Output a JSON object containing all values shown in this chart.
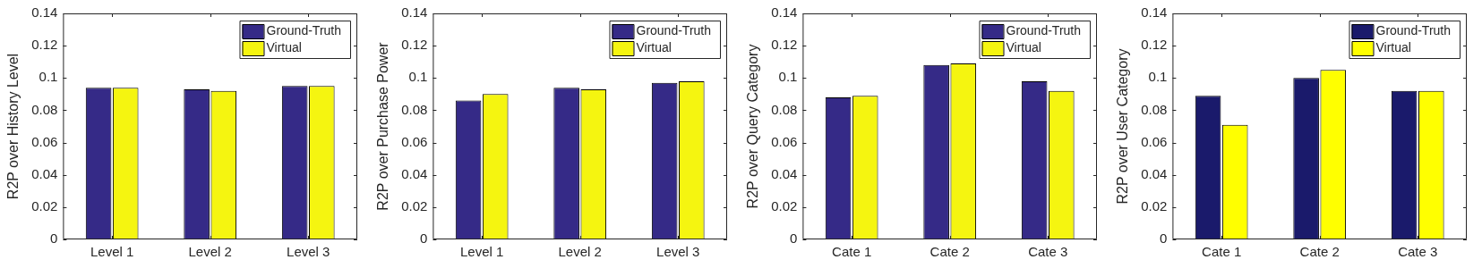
{
  "chart_data": [
    {
      "type": "bar",
      "ylabel": "R2P over History Level",
      "categories": [
        "Level 1",
        "Level 2",
        "Level 3"
      ],
      "ylim": [
        0,
        0.14
      ],
      "yticks": [
        0,
        0.02,
        0.04,
        0.06,
        0.08,
        0.1,
        0.12,
        0.14
      ],
      "legend": "top right",
      "series": [
        {
          "name": "Ground-Truth",
          "color": "#352a87",
          "values": [
            0.094,
            0.093,
            0.095
          ]
        },
        {
          "name": "Virtual",
          "color": "#f5f510",
          "values": [
            0.094,
            0.092,
            0.095
          ]
        }
      ]
    },
    {
      "type": "bar",
      "ylabel": "R2P over Purchase Power",
      "categories": [
        "Level 1",
        "Level 2",
        "Level 3"
      ],
      "ylim": [
        0,
        0.14
      ],
      "yticks": [
        0,
        0.02,
        0.04,
        0.06,
        0.08,
        0.1,
        0.12,
        0.14
      ],
      "legend": "top right",
      "series": [
        {
          "name": "Ground-Truth",
          "color": "#352a87",
          "values": [
            0.086,
            0.094,
            0.097
          ]
        },
        {
          "name": "Virtual",
          "color": "#f5f510",
          "values": [
            0.09,
            0.093,
            0.098
          ]
        }
      ]
    },
    {
      "type": "bar",
      "ylabel": "R2P over Query Category",
      "categories": [
        "Cate 1",
        "Cate 2",
        "Cate 3"
      ],
      "ylim": [
        0,
        0.14
      ],
      "yticks": [
        0,
        0.02,
        0.04,
        0.06,
        0.08,
        0.1,
        0.12,
        0.14
      ],
      "legend": "top right",
      "series": [
        {
          "name": "Ground-Truth",
          "color": "#352a87",
          "values": [
            0.088,
            0.108,
            0.098
          ]
        },
        {
          "name": "Virtual",
          "color": "#f5f510",
          "values": [
            0.089,
            0.109,
            0.092
          ]
        }
      ]
    },
    {
      "type": "bar",
      "ylabel": "R2P over User Category",
      "categories": [
        "Cate 1",
        "Cate 2",
        "Cate 3"
      ],
      "ylim": [
        0,
        0.14
      ],
      "yticks": [
        0,
        0.02,
        0.04,
        0.06,
        0.08,
        0.1,
        0.12,
        0.14
      ],
      "legend": "top right",
      "series": [
        {
          "name": "Ground-Truth",
          "color": "#1a1a6b",
          "values": [
            0.089,
            0.1,
            0.092
          ]
        },
        {
          "name": "Virtual",
          "color": "#ffff00",
          "values": [
            0.071,
            0.105,
            0.092
          ]
        }
      ]
    }
  ]
}
